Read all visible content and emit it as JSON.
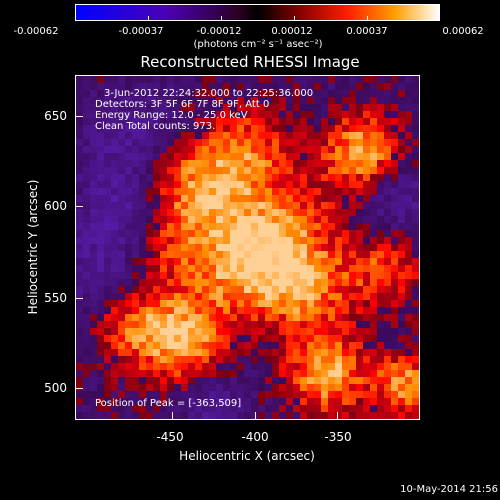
{
  "colorbar": {
    "labels": [
      "-0.00062",
      "-0.00037",
      "-0.00012",
      "0.00012",
      "0.00037",
      "0.00062"
    ],
    "units": "(photons cm⁻² s⁻¹ asec⁻²)"
  },
  "title": "Reconstructed RHESSI Image",
  "annotation": {
    "line1": "3-Jun-2012 22:24:32.000 to 22:25:36.000",
    "line2": "Detectors: 3F 5F 6F 7F 8F 9F, Att 0",
    "line3": "Energy Range: 12.0 - 25.0 keV",
    "line4": "Clean     Total counts: 973.",
    "peak": "Position of Peak = [-363,509]"
  },
  "axes": {
    "xlabel": "Heliocentric X (arcsec)",
    "ylabel": "Heliocentric Y (arcsec)",
    "xticks": [
      "-450",
      "-400",
      "-350"
    ],
    "yticks": [
      "650",
      "600",
      "550",
      "500"
    ]
  },
  "footer": "10-May-2014 21:56"
}
